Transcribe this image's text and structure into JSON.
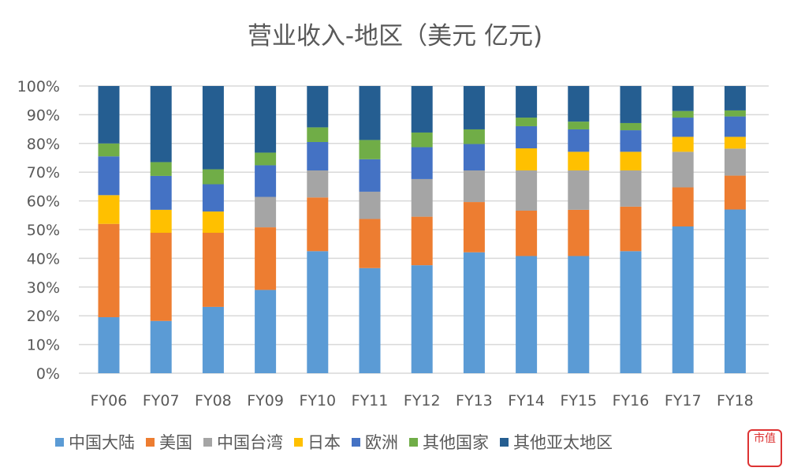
{
  "chart_data": {
    "type": "bar",
    "stacked": "percent",
    "title": "营业收入-地区（美元 亿元)",
    "xlabel": "",
    "ylabel": "",
    "ylim": [
      0,
      100
    ],
    "yticks": [
      "0%",
      "10%",
      "20%",
      "30%",
      "40%",
      "50%",
      "60%",
      "70%",
      "80%",
      "90%",
      "100%"
    ],
    "grid": true,
    "legend_position": "bottom",
    "categories": [
      "FY06",
      "FY07",
      "FY08",
      "FY09",
      "FY10",
      "FY11",
      "FY12",
      "FY13",
      "FY14",
      "FY15",
      "FY16",
      "FY17",
      "FY18"
    ],
    "series": [
      {
        "name": "中国大陆",
        "color": "#5B9BD5",
        "values": [
          19.5,
          18.2,
          23.1,
          29.0,
          42.5,
          36.6,
          37.6,
          42.1,
          40.8,
          40.8,
          42.5,
          51.1,
          57.0
        ]
      },
      {
        "name": "美国",
        "color": "#ED7D31",
        "values": [
          32.5,
          30.7,
          25.8,
          21.8,
          18.7,
          17.1,
          16.9,
          17.5,
          15.8,
          16.1,
          15.5,
          13.6,
          11.8
        ]
      },
      {
        "name": "中国台湾",
        "color": "#A5A5A5",
        "values": [
          0,
          0,
          0,
          10.6,
          9.4,
          9.5,
          13.1,
          11.0,
          14.0,
          13.7,
          12.6,
          12.4,
          9.4
        ]
      },
      {
        "name": "日本",
        "color": "#FFC000",
        "values": [
          10.0,
          8.0,
          7.4,
          0,
          0,
          0,
          0,
          0,
          7.7,
          6.5,
          6.5,
          5.2,
          4.1
        ]
      },
      {
        "name": "欧洲",
        "color": "#4472C4",
        "values": [
          13.5,
          11.8,
          9.5,
          11.0,
          9.9,
          11.3,
          11.1,
          9.2,
          7.7,
          7.8,
          7.5,
          6.7,
          7.1
        ]
      },
      {
        "name": "其他国家",
        "color": "#70AD47",
        "values": [
          4.5,
          4.8,
          5.2,
          4.4,
          5.1,
          6.7,
          5.1,
          5.1,
          3.0,
          2.7,
          2.5,
          2.3,
          2.1
        ]
      },
      {
        "name": "其他亚太地区",
        "color": "#255E91",
        "values": [
          20.0,
          26.5,
          29.0,
          23.2,
          14.4,
          18.8,
          16.2,
          15.1,
          11.0,
          12.4,
          12.9,
          8.7,
          8.5
        ]
      }
    ]
  },
  "watermark": "市值风云APP wogoo.com",
  "logo_text": "市值"
}
